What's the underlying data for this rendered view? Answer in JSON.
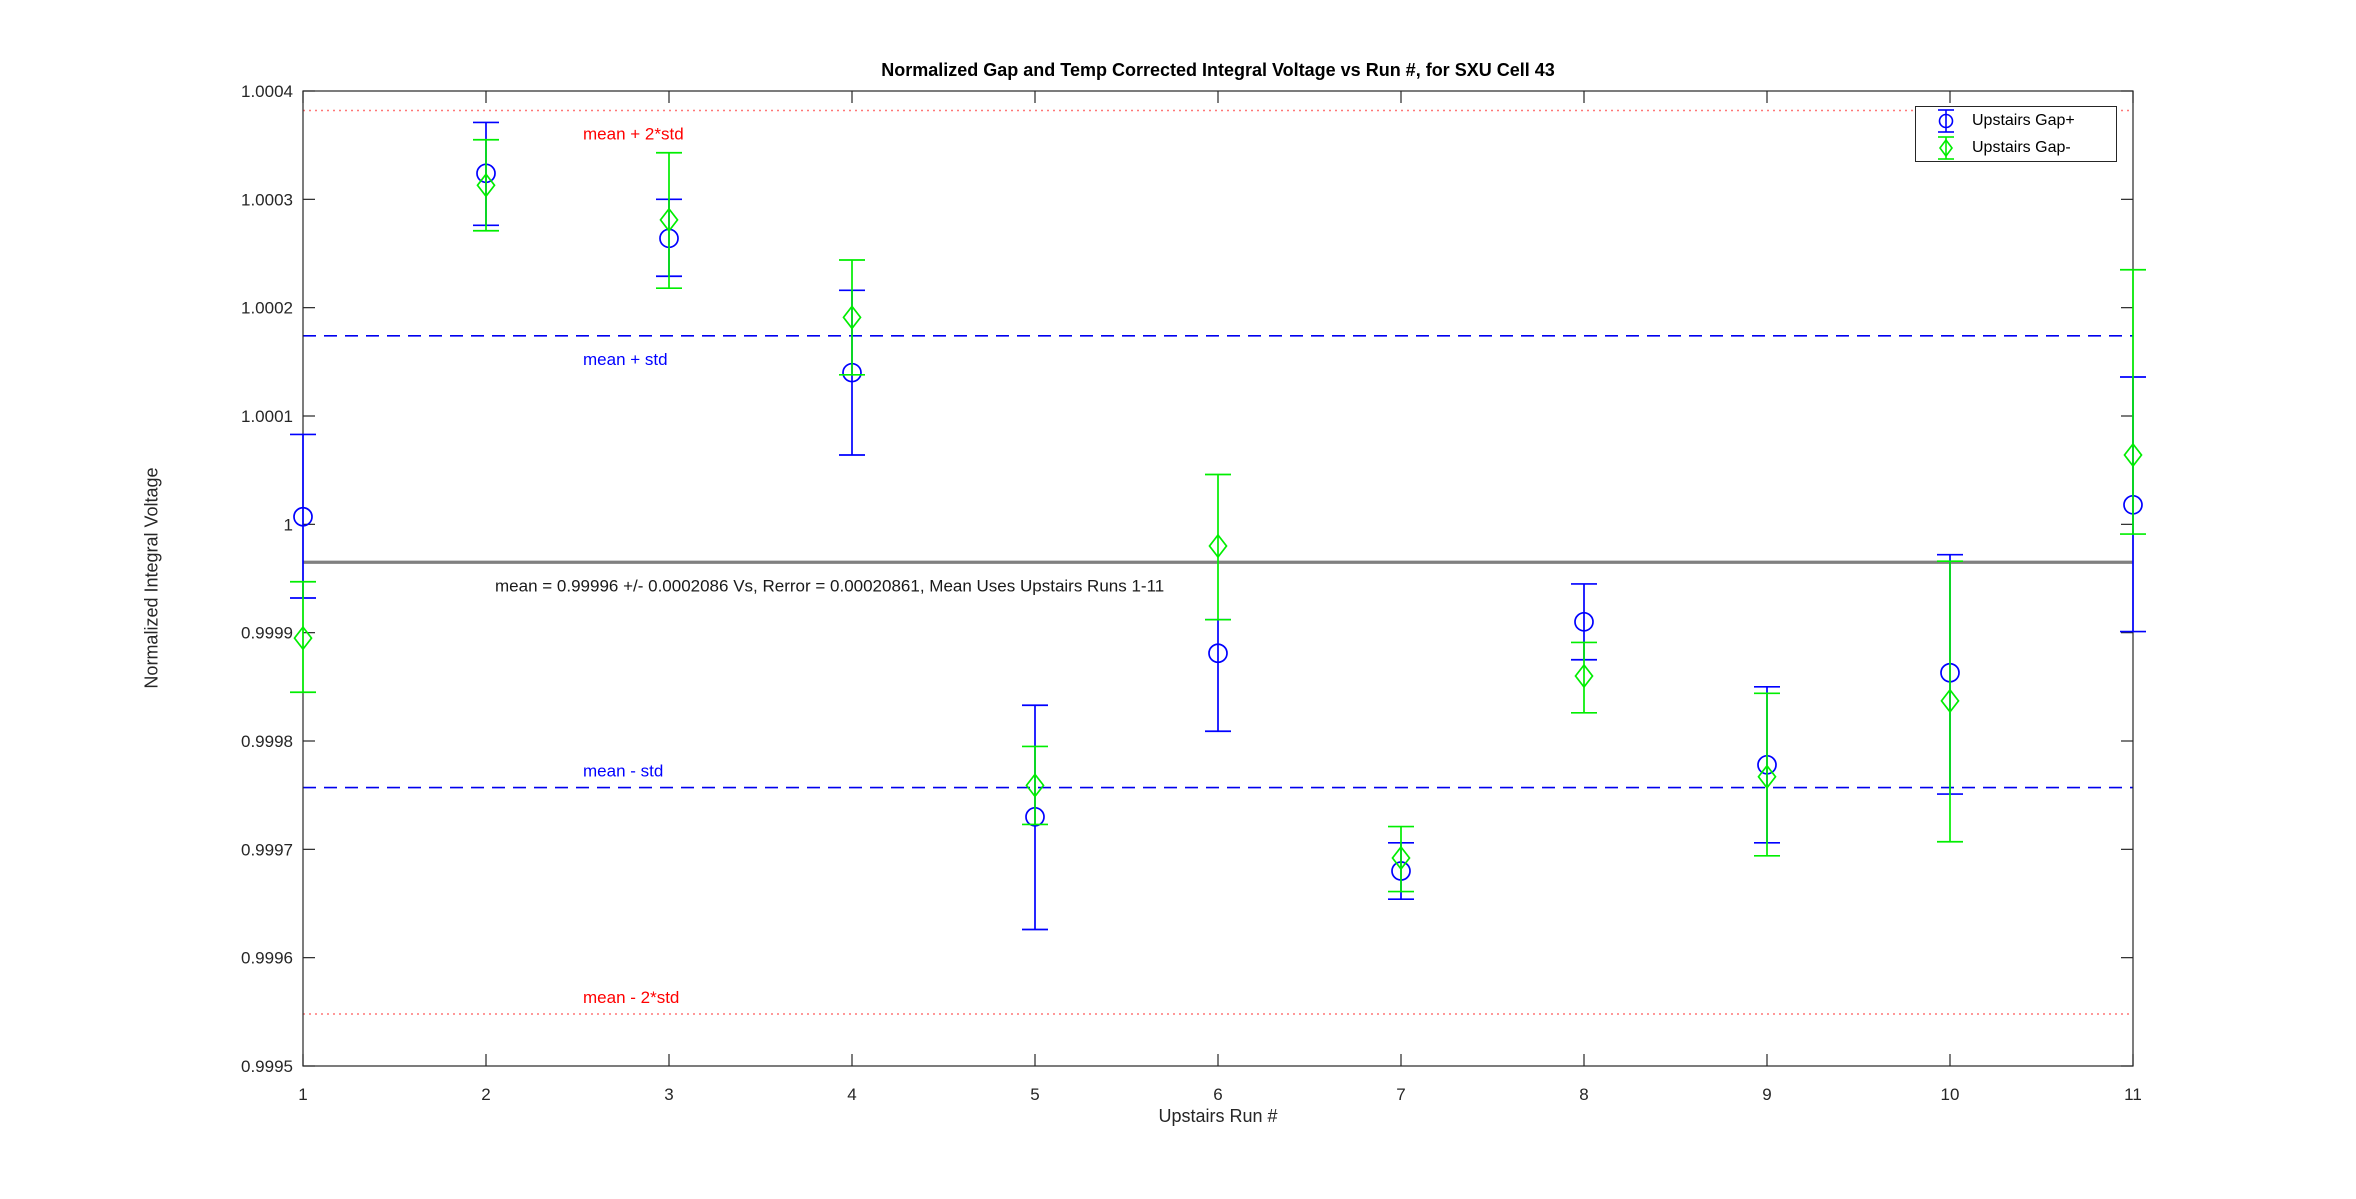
{
  "title": "Normalized Gap and Temp Corrected Integral Voltage vs Run #, for SXU Cell 43",
  "xlabel": "Upstairs Run #",
  "ylabel": "Normalized Integral Voltage",
  "legend": [
    {
      "label": "Upstairs Gap+",
      "color": "#0000ff",
      "marker": "circle"
    },
    {
      "label": "Upstairs Gap-",
      "color": "#00ee00",
      "marker": "diamond"
    }
  ],
  "chart_data": {
    "type": "scatter",
    "subtype": "errorbar",
    "x": [
      1,
      2,
      3,
      4,
      5,
      6,
      7,
      8,
      9,
      10,
      11
    ],
    "xlim": [
      1,
      11
    ],
    "ylim": [
      0.9995,
      1.0004
    ],
    "xtick_labels": [
      "1",
      "2",
      "3",
      "4",
      "5",
      "6",
      "7",
      "8",
      "9",
      "10",
      "11"
    ],
    "yticks": [
      0.9995,
      0.9996,
      0.9997,
      0.9998,
      0.9999,
      1.0,
      1.0001,
      1.0002,
      1.0003,
      1.0004
    ],
    "ytick_labels": [
      "0.9995",
      "0.9996",
      "0.9997",
      "0.9998",
      "0.9999",
      "1",
      "1.0001",
      "1.0002",
      "1.0003",
      "1.0004"
    ],
    "grid": false,
    "legend_position": "northeast",
    "series": [
      {
        "name": "Upstairs Gap+",
        "marker": "circle",
        "color": "#0000ff",
        "values": [
          1.000007,
          1.000324,
          1.000264,
          1.00014,
          0.99973,
          0.999881,
          0.99968,
          0.99991,
          0.999778,
          0.999863,
          1.000018
        ],
        "err_hi": [
          1.000083,
          1.000371,
          1.0003,
          1.000216,
          0.999833,
          0.999912,
          0.999706,
          0.999945,
          0.99985,
          0.999972,
          1.000136
        ],
        "err_lo": [
          0.999932,
          1.000276,
          1.000229,
          1.000064,
          0.999626,
          0.999809,
          0.999654,
          0.999875,
          0.999706,
          0.999751,
          0.999901
        ]
      },
      {
        "name": "Upstairs Gap-",
        "marker": "diamond",
        "color": "#00ee00",
        "values": [
          0.999895,
          1.000313,
          1.000281,
          1.000191,
          0.999759,
          0.99998,
          0.999692,
          0.99986,
          0.999767,
          0.999837,
          1.000064
        ],
        "err_hi": [
          0.999947,
          1.000355,
          1.000343,
          1.000244,
          0.999795,
          1.000046,
          0.999721,
          0.999891,
          0.999844,
          0.999966,
          1.000235
        ],
        "err_lo": [
          0.999845,
          1.000271,
          1.000218,
          1.000138,
          0.999723,
          0.999912,
          0.999661,
          0.999826,
          0.999694,
          0.999707,
          0.999991
        ]
      }
    ],
    "ref_lines": [
      {
        "id": "mean-plus-2std",
        "label": "mean + 2*std",
        "value": 1.000382,
        "style": "dotted",
        "line_color": "#ff7777",
        "label_color": "#ff0000"
      },
      {
        "id": "mean-plus-std",
        "label": "mean + std",
        "value": 1.000174,
        "style": "dashed",
        "line_color": "#0000ee",
        "label_color": "#0000ff"
      },
      {
        "id": "mean",
        "label": "mean = 0.99996 +/- 0.0002086 Vs, Rerror = 0.00020861, Mean Uses Upstairs Runs 1-11",
        "value": 0.999965,
        "style": "solid",
        "line_color": "#808080",
        "label_color": "#1a1a1a"
      },
      {
        "id": "mean-minus-std",
        "label": "mean - std",
        "value": 0.999757,
        "style": "dashed",
        "line_color": "#0000ee",
        "label_color": "#0000ff"
      },
      {
        "id": "mean-minus-2std",
        "label": "mean - 2*std",
        "value": 0.999548,
        "style": "dotted",
        "line_color": "#ff7777",
        "label_color": "#ff0000"
      }
    ],
    "stats": {
      "mean": "0.99996",
      "std": "0.0002086",
      "rerror": "0.00020861",
      "mean_uses": "Upstairs Runs 1-11"
    }
  }
}
